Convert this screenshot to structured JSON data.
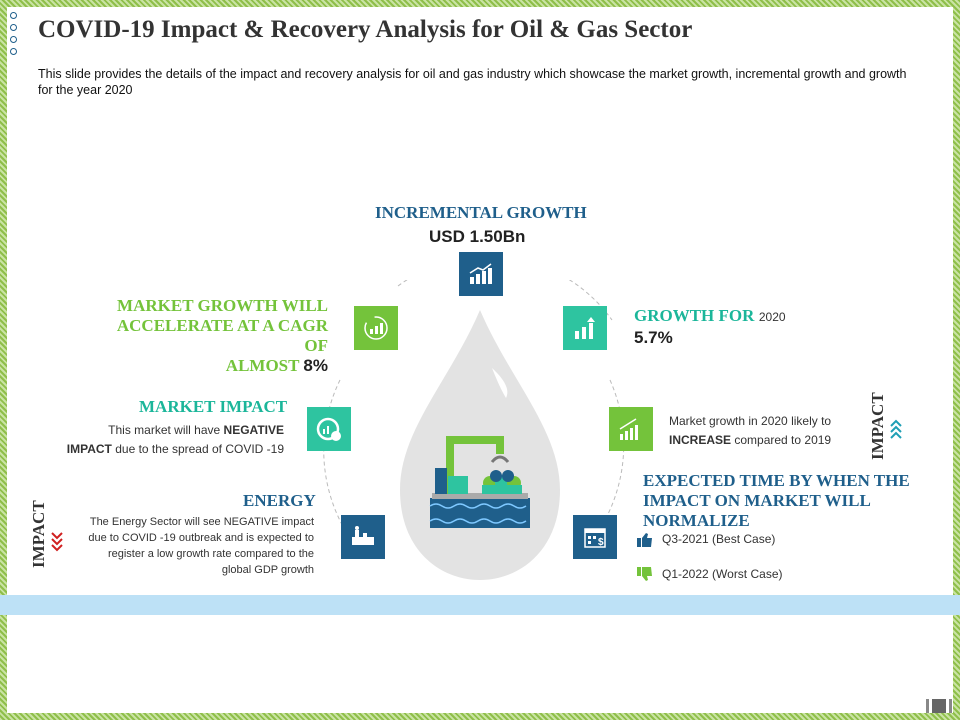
{
  "title": "COVID-19 Impact & Recovery Analysis for Oil & Gas Sector",
  "subtitle": "This slide provides the details of the impact and recovery analysis for oil and gas industry which showcase the market growth, incremental growth and growth for the year 2020",
  "incremental": {
    "label": "INCREMENTAL GROWTH",
    "value": "USD 1.50Bn"
  },
  "cagr": {
    "line1": "MARKET GROWTH WILL",
    "line2": "ACCELERATE AT A CAGR OF",
    "line3": "ALMOST",
    "value": "8%"
  },
  "growth2020": {
    "label": "GROWTH FOR",
    "year": "2020",
    "value": "5.7%"
  },
  "market_impact": {
    "label": "MARKET IMPACT",
    "text1": "This market will have",
    "bold1": "NEGATIVE",
    "bold2": "IMPACT",
    "text2": "due to the spread of COVID -19"
  },
  "market_growth_2020": {
    "text1": "Market growth in 2020 likely to",
    "bold": "INCREASE",
    "text2": "compared to 2019"
  },
  "energy": {
    "label": "ENERGY",
    "line1": "The Energy Sector will see NEGATIVE  impact",
    "line2": "due to COVID -19 outbreak and is expected to",
    "line3": "register a low growth rate compared to the",
    "line4": "global GDP growth"
  },
  "expected": {
    "line1": "EXPECTED TIME BY WHEN THE",
    "line2": "IMPACT ON MARKET WILL",
    "line3": "NORMALIZE",
    "best": "Q3-2021 (Best Case)",
    "worst": "Q1-2022 (Worst Case)"
  },
  "impact_left": "IMPACT",
  "impact_right": "IMPACT",
  "colors": {
    "blue": "#1f5f8b",
    "green": "#74c33b",
    "teal": "#2ec4a0",
    "band": "#bde1f6",
    "border": "#a9cf71"
  }
}
